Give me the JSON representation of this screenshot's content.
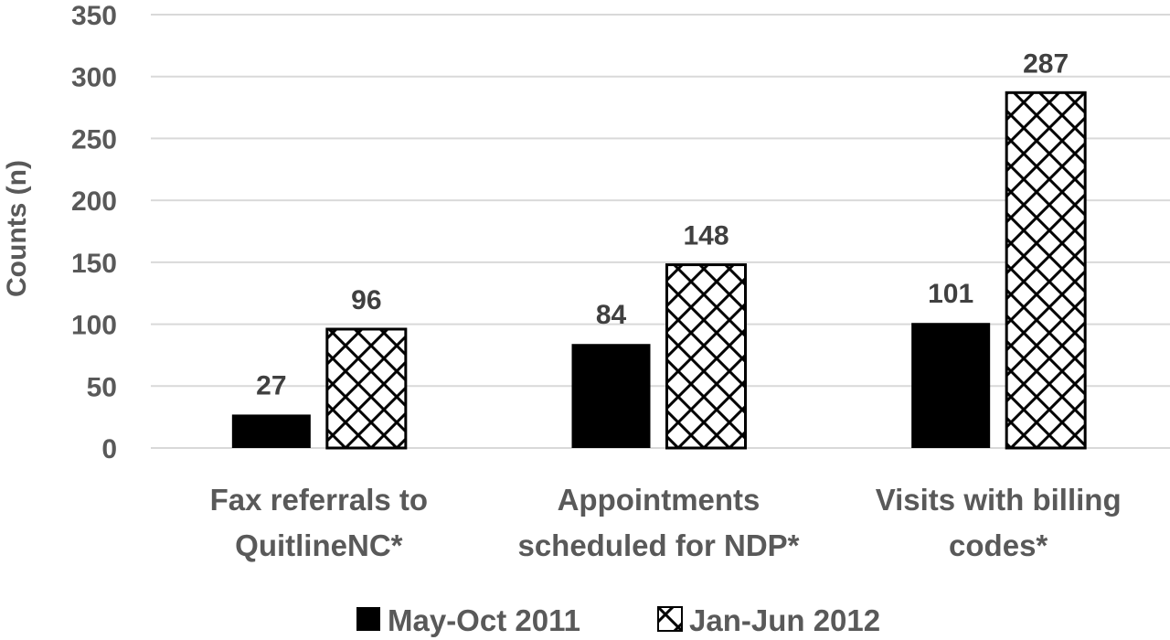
{
  "chart_data": {
    "type": "bar",
    "title": "",
    "xlabel": "",
    "ylabel": "Counts (n)",
    "ylim": [
      0,
      350
    ],
    "yticks": [
      0,
      50,
      100,
      150,
      200,
      250,
      300,
      350
    ],
    "grid": true,
    "legend_position": "bottom",
    "categories": [
      [
        "Fax referrals to",
        "QuitlineNC*"
      ],
      [
        "Appointments",
        "scheduled for NDP*"
      ],
      [
        "Visits with billing",
        "codes*"
      ]
    ],
    "series": [
      {
        "name": "May-Oct 2011",
        "values": [
          27,
          84,
          101
        ],
        "fill": "solid",
        "color": "#000000"
      },
      {
        "name": "Jan-Jun 2012",
        "values": [
          96,
          148,
          287
        ],
        "fill": "crosshatch",
        "color": "#000000"
      }
    ]
  }
}
